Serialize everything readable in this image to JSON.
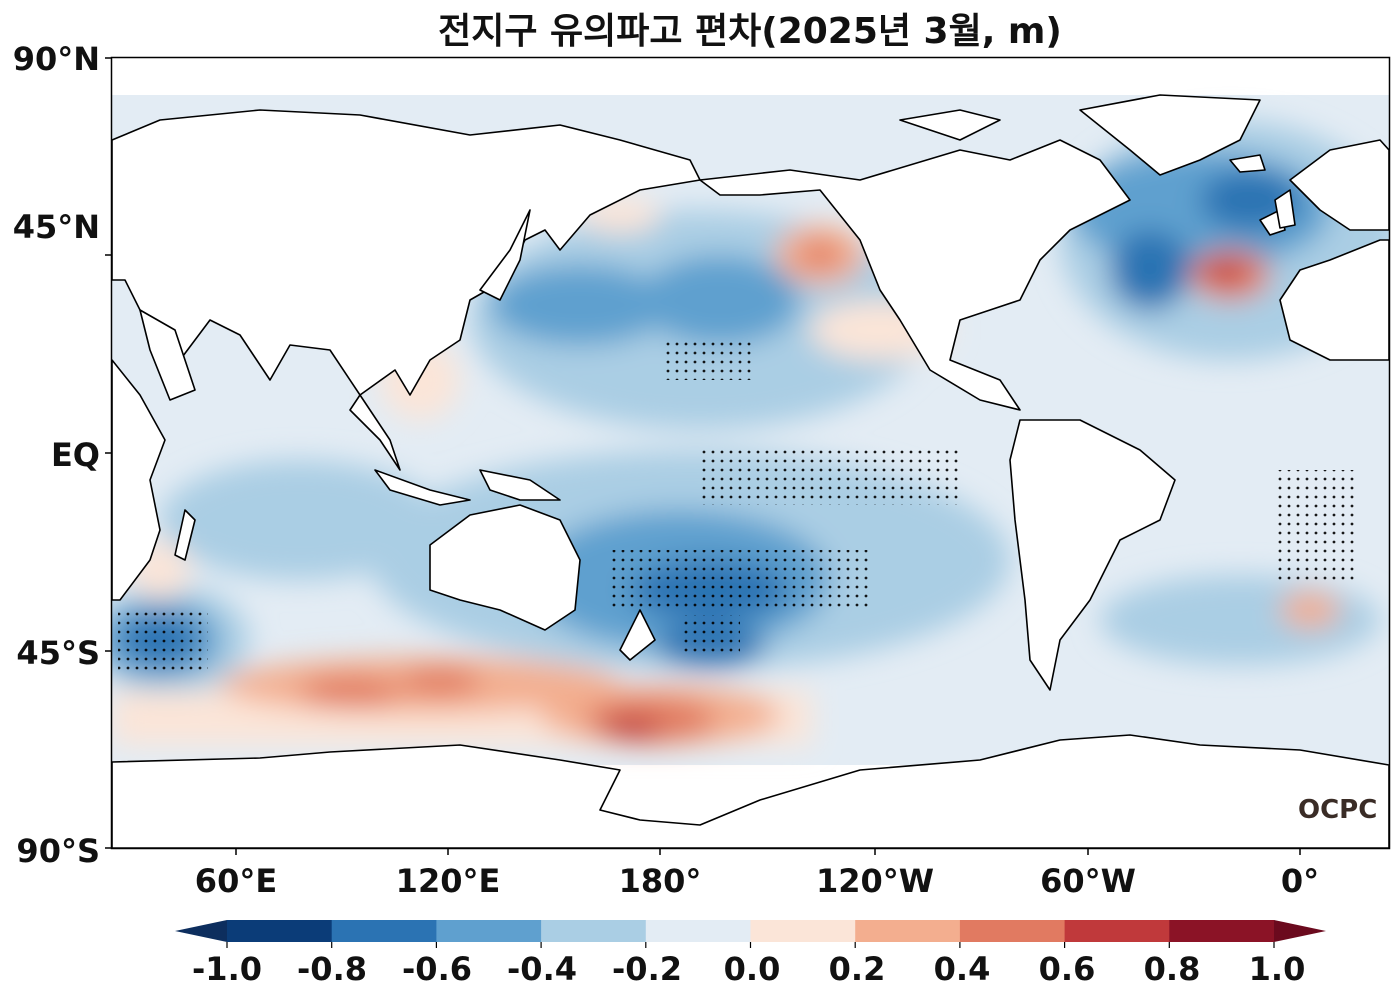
{
  "title": "전지구 유의파고 편차(2025년 3월, m)",
  "y_ticks": [
    "90°N",
    "45°N",
    "EQ",
    "45°S",
    "90°S"
  ],
  "x_ticks": [
    "60°E",
    "120°E",
    "180°",
    "120°W",
    "60°W",
    "0°"
  ],
  "colorbar": {
    "ticks": [
      "-1.0",
      "-0.8",
      "-0.6",
      "-0.4",
      "-0.2",
      "0.0",
      "0.2",
      "0.4",
      "0.6",
      "0.8",
      "1.0"
    ],
    "colors": [
      "#0b3c78",
      "#2b73b3",
      "#5fa0cf",
      "#aacee4",
      "#e3ecf4",
      "#fbe5d8",
      "#f3ae8f",
      "#e17a61",
      "#c0393b",
      "#8b1326"
    ],
    "under_color": "#0d2e5e",
    "over_color": "#6b0a1e",
    "extend": "both"
  },
  "logo": "OCPC",
  "colors": {
    "land": "#ffffff",
    "coast": "#000000",
    "frame": "#000000"
  }
}
